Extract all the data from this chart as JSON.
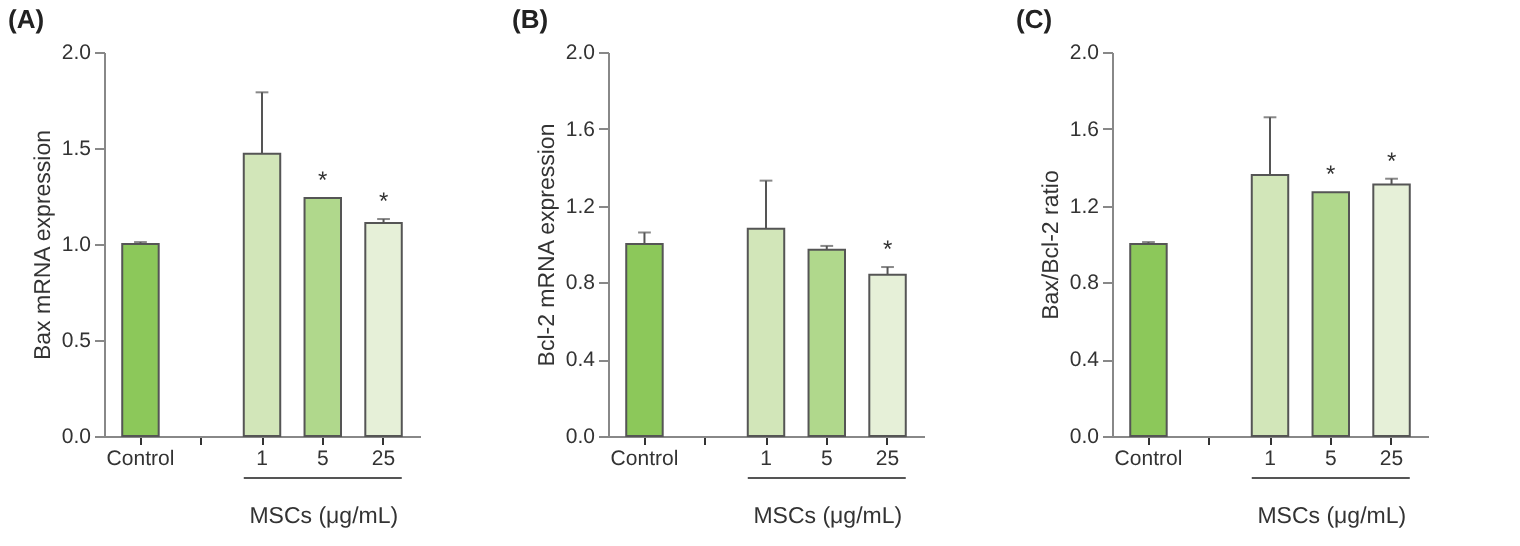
{
  "chart_data": [
    {
      "type": "bar",
      "title": "(A)",
      "ylabel": "Bax mRNA expression",
      "xlabel": "MSCs (μg/mL)",
      "categories": [
        "Control",
        null,
        "1",
        "5",
        "25"
      ],
      "values": [
        1.0,
        null,
        1.47,
        1.24,
        1.11
      ],
      "colors": [
        "#8cc85a",
        null,
        "#d2e6b9",
        "#b0d88c",
        "#e6f0d8"
      ],
      "errors": [
        [
          1.0,
          1.01
        ],
        null,
        [
          1.47,
          1.79
        ],
        null,
        [
          1.11,
          1.13
        ]
      ],
      "ylim": [
        0,
        2
      ],
      "yticks": [
        {
          "value": 0,
          "label": "0.0"
        },
        {
          "value": 0.5,
          "label": "0.5"
        },
        {
          "value": 1,
          "label": "1.0"
        },
        {
          "value": 1.5,
          "label": "1.5"
        },
        {
          "value": 2,
          "label": "2.0"
        }
      ],
      "annotations": [
        {
          "text": "*",
          "x": "5",
          "y": 1.24
        },
        {
          "text": "*",
          "x": "25",
          "y": 1.13
        }
      ],
      "grid": false
    },
    {
      "type": "bar",
      "title": "(B)",
      "ylabel": "Bcl-2 mRNA expression",
      "xlabel": "MSCs (μg/mL)",
      "categories": [
        "Control",
        null,
        "1",
        "5",
        "25"
      ],
      "values": [
        1.0,
        null,
        1.08,
        0.97,
        0.84
      ],
      "colors": [
        "#8cc85a",
        null,
        "#d2e6b9",
        "#b0d88c",
        "#e6f0d8"
      ],
      "errors": [
        [
          1.0,
          1.06
        ],
        null,
        [
          1.08,
          1.33
        ],
        [
          0.97,
          0.99
        ],
        [
          0.84,
          0.88
        ]
      ],
      "ylim": [
        0,
        2
      ],
      "yticks": [
        {
          "value": 0,
          "label": "0.0"
        },
        {
          "value": 0.4,
          "label": "0.4"
        },
        {
          "value": 0.8,
          "label": "0.8"
        },
        {
          "value": 1.2,
          "label": "1.2"
        },
        {
          "value": 1.6,
          "label": "1.6"
        },
        {
          "value": 2,
          "label": "2.0"
        }
      ],
      "annotations": [
        {
          "text": "*",
          "x": "25",
          "y": 0.88
        }
      ],
      "grid": false
    },
    {
      "type": "bar",
      "title": "(C)",
      "ylabel": "Bax/Bcl-2 ratio",
      "xlabel": "MSCs (μg/mL)",
      "categories": [
        "Control",
        null,
        "1",
        "5",
        "25"
      ],
      "values": [
        1.0,
        null,
        1.36,
        1.27,
        1.31
      ],
      "colors": [
        "#8cc85a",
        null,
        "#d2e6b9",
        "#b0d88c",
        "#e6f0d8"
      ],
      "errors": [
        [
          1.0,
          1.01
        ],
        null,
        [
          1.36,
          1.66
        ],
        null,
        [
          1.31,
          1.34
        ]
      ],
      "ylim": [
        0,
        2
      ],
      "yticks": [
        {
          "value": 0,
          "label": "0.0"
        },
        {
          "value": 0.4,
          "label": "0.4"
        },
        {
          "value": 0.8,
          "label": "0.8"
        },
        {
          "value": 1.2,
          "label": "1.2"
        },
        {
          "value": 1.6,
          "label": "1.6"
        },
        {
          "value": 2,
          "label": "2.0"
        }
      ],
      "annotations": [
        {
          "text": "*",
          "x": "5",
          "y": 1.27
        },
        {
          "text": "*",
          "x": "25",
          "y": 1.34
        }
      ],
      "grid": false
    }
  ]
}
